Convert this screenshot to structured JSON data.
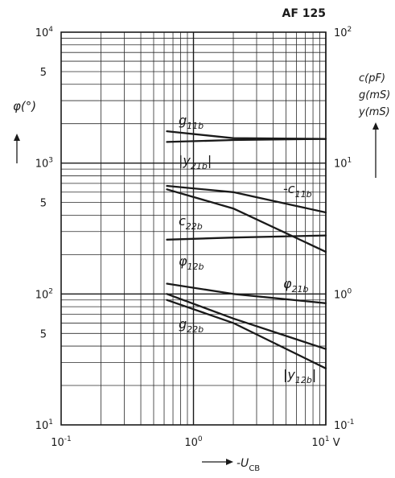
{
  "chart_data": {
    "type": "line",
    "title": "AF 125",
    "x_scale": "log",
    "xlim": [
      0.1,
      10
    ],
    "x_ticks": [
      {
        "m": "10",
        "e": "-1"
      },
      {
        "m": "10",
        "e": "0"
      },
      {
        "m": "10",
        "e": "1"
      }
    ],
    "x_unit": "V",
    "xlabel": {
      "prefix": "-U",
      "sub": "CB"
    },
    "left_axis": {
      "scale": "log",
      "ylim": [
        10,
        10000
      ],
      "label": "φ(°)",
      "ticks": [
        {
          "m": "10",
          "e": "4",
          "v": 10000
        },
        {
          "m": "10",
          "e": "3",
          "v": 1000
        },
        {
          "m": "10",
          "e": "2",
          "v": 100
        },
        {
          "m": "10",
          "e": "1",
          "v": 10
        }
      ],
      "minor_labels": [
        {
          "text": "5",
          "v": 5000
        },
        {
          "text": "5",
          "v": 500
        },
        {
          "text": "5",
          "v": 50
        }
      ]
    },
    "right_axis": {
      "scale": "log",
      "ylim": [
        0.1,
        100
      ],
      "labels": [
        "c(pF)",
        "g(mS)",
        "y(mS)"
      ],
      "ticks": [
        {
          "m": "10",
          "e": "2",
          "v": 100
        },
        {
          "m": "10",
          "e": "1",
          "v": 10
        },
        {
          "m": "10",
          "e": "0",
          "v": 1
        },
        {
          "m": "10",
          "e": "-1",
          "v": 0.1
        }
      ]
    },
    "grid": true,
    "series": [
      {
        "name": "g",
        "sub": "11b",
        "axis": "right",
        "x": [
          0.63,
          2,
          10
        ],
        "y": [
          17.5,
          15.5,
          15.3
        ]
      },
      {
        "name": "|y",
        "sub": "21b",
        "suffix": "|",
        "axis": "right",
        "x": [
          0.63,
          2,
          10
        ],
        "y": [
          14.5,
          15.0,
          15.3
        ]
      },
      {
        "name": "-c",
        "sub": "11b",
        "axis": "right",
        "x": [
          0.63,
          2,
          10
        ],
        "y": [
          6.7,
          6.0,
          4.2
        ]
      },
      {
        "name": "c",
        "sub": "22b",
        "axis": "right",
        "x": [
          0.63,
          2,
          10
        ],
        "y": [
          6.3,
          4.5,
          2.1
        ]
      },
      {
        "name": "φ",
        "sub": "12b",
        "axis": "left",
        "x": [
          0.63,
          2,
          10
        ],
        "y": [
          260,
          270,
          280
        ]
      },
      {
        "name": "φ",
        "sub": "21b",
        "axis": "left",
        "x": [
          0.63,
          2,
          10
        ],
        "y": [
          120,
          100,
          85
        ]
      },
      {
        "name": "g",
        "sub": "22b",
        "axis": "right",
        "x": [
          0.63,
          2,
          10
        ],
        "y": [
          1.0,
          0.65,
          0.38
        ]
      },
      {
        "name": "|y",
        "sub": "12b",
        "suffix": "|",
        "axis": "right",
        "x": [
          0.63,
          2,
          10
        ],
        "y": [
          0.9,
          0.6,
          0.27
        ]
      }
    ]
  }
}
